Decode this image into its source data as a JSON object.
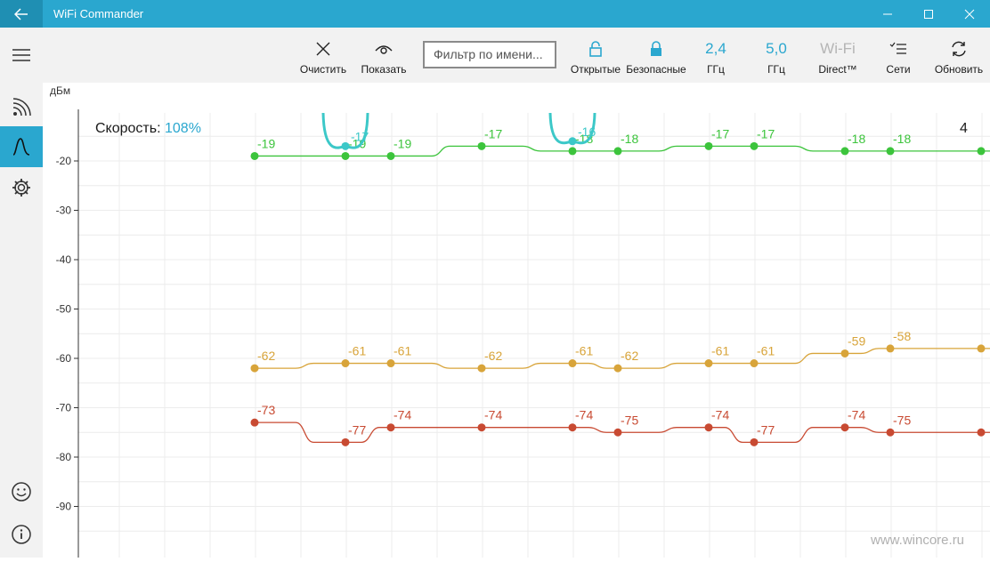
{
  "titlebar": {
    "title": "WiFi Commander",
    "icons": {
      "back": "back-arrow-icon",
      "minimize": "minimize-icon",
      "maximize": "maximize-icon",
      "close": "close-icon"
    }
  },
  "toolbar": {
    "clear_label": "Очистить",
    "show_label": "Показать",
    "filter_placeholder": "Фильтр по имени...",
    "open_label": "Открытые",
    "secure_label": "Безопасные",
    "band24_value": "2,4",
    "band24_unit": "ГГц",
    "band50_value": "5,0",
    "band50_unit": "ГГц",
    "direct_top": "Wi-Fi",
    "direct_bottom": "Direct™",
    "networks_label": "Сети",
    "refresh_label": "Обновить"
  },
  "status": {
    "speed_label": "Скорость:",
    "speed_value": "108%",
    "count": "4"
  },
  "watermark": "www.wincore.ru",
  "colors": {
    "accent": "#2aa7cf",
    "green": "#3cc43c",
    "orange": "#d8a43a",
    "red": "#c84a32",
    "cyan": "#3cc8c8"
  },
  "chart_data": {
    "type": "line",
    "ylabel": "дБм",
    "ylim": [
      -100,
      -12
    ],
    "yticks": [
      -20,
      -30,
      -40,
      -50,
      -60,
      -70,
      -80,
      -90
    ],
    "grid": true,
    "x": [
      0,
      2,
      3,
      5,
      7,
      8,
      10,
      11,
      13,
      14,
      16
    ],
    "series": [
      {
        "color": "#3cc43c",
        "values": [
          -19,
          -19,
          -19,
          -17,
          -18,
          -18,
          -17,
          -17,
          -18,
          -18,
          -18
        ],
        "labels": [
          "-19",
          "-19",
          "-19",
          "-17",
          "-18",
          "-18",
          "-17",
          "-17",
          "-18",
          "-18",
          ""
        ]
      },
      {
        "color": "#d8a43a",
        "values": [
          -62,
          -61,
          -61,
          -62,
          -61,
          -62,
          -61,
          -61,
          -59,
          -58,
          -58
        ],
        "labels": [
          "-62",
          "-61",
          "-61",
          "-62",
          "-61",
          "-62",
          "-61",
          "-61",
          "-59",
          "-58",
          ""
        ]
      },
      {
        "color": "#c84a32",
        "values": [
          -73,
          -77,
          -74,
          -74,
          -74,
          -75,
          -74,
          -77,
          -74,
          -75,
          -75
        ],
        "labels": [
          "-73",
          "-77",
          "-74",
          "-74",
          "-74",
          "-75",
          "-74",
          "-77",
          "-74",
          "-75",
          ""
        ]
      },
      {
        "color": "#3cc8c8",
        "points": [
          [
            2,
            -17
          ],
          [
            7,
            -16
          ]
        ],
        "labels": [
          "-17",
          "-16"
        ]
      }
    ]
  }
}
